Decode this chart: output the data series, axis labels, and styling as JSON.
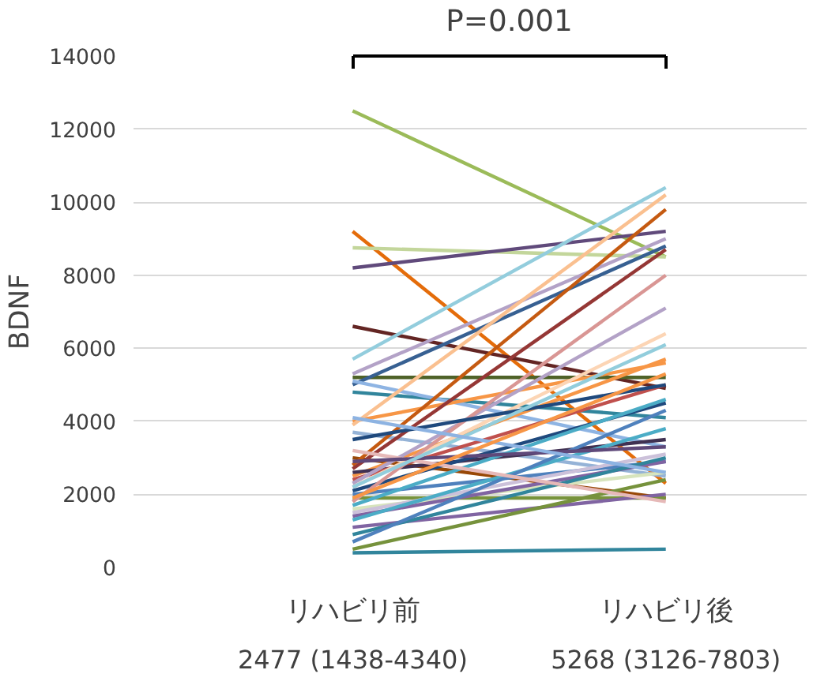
{
  "chart_data": {
    "type": "line",
    "ylabel": "BDNF",
    "categories": [
      "リハビリ前",
      "リハビリ後"
    ],
    "ylim": [
      0,
      14000
    ],
    "yticks": [
      0,
      2000,
      4000,
      6000,
      8000,
      10000,
      12000,
      14000
    ],
    "grid": "y",
    "marker": "none",
    "line_style": "solid",
    "annotations": [
      "P=0.001",
      "2477 (1438-4340)",
      "5268 (3126-7803)"
    ],
    "series": [
      {
        "color": "#9bbb59",
        "values": [
          12500,
          8500
        ]
      },
      {
        "color": "#e46c0a",
        "values": [
          9200,
          2300
        ]
      },
      {
        "color": "#c3d69b",
        "values": [
          8750,
          8500
        ]
      },
      {
        "color": "#604a7b",
        "values": [
          8200,
          9200
        ]
      },
      {
        "color": "#632523",
        "values": [
          6600,
          4900
        ]
      },
      {
        "color": "#93cddd",
        "values": [
          5700,
          10400
        ]
      },
      {
        "color": "#b3a2c7",
        "values": [
          5300,
          9000
        ]
      },
      {
        "color": "#4f6228",
        "values": [
          5200,
          5200
        ]
      },
      {
        "color": "#376092",
        "values": [
          5000,
          8800
        ]
      },
      {
        "color": "#31859c",
        "values": [
          4800,
          4100
        ]
      },
      {
        "color": "#8eb4e3",
        "values": [
          5100,
          3300
        ]
      },
      {
        "color": "#f79646",
        "values": [
          4000,
          5600
        ]
      },
      {
        "color": "#fac090",
        "values": [
          3900,
          10200
        ]
      },
      {
        "color": "#95b3d7",
        "values": [
          3700,
          2500
        ]
      },
      {
        "color": "#984807",
        "values": [
          3000,
          1900
        ]
      },
      {
        "color": "#c55a11",
        "values": [
          2800,
          9800
        ]
      },
      {
        "color": "#953735",
        "values": [
          2700,
          8700
        ]
      },
      {
        "color": "#f79646",
        "values": [
          2500,
          5700
        ]
      },
      {
        "color": "#403152",
        "values": [
          2600,
          3500
        ]
      },
      {
        "color": "#c0504d",
        "values": [
          2400,
          5000
        ]
      },
      {
        "color": "#b3a2c7",
        "values": [
          2300,
          7100
        ]
      },
      {
        "color": "#fcd5b5",
        "values": [
          2200,
          6400
        ]
      },
      {
        "color": "#1f497d",
        "values": [
          2100,
          4500
        ]
      },
      {
        "color": "#4f81bd",
        "values": [
          2000,
          2900
        ]
      },
      {
        "color": "#77933c",
        "values": [
          1900,
          1900
        ]
      },
      {
        "color": "#d99694",
        "values": [
          1800,
          8000
        ]
      },
      {
        "color": "#4bacc6",
        "values": [
          1700,
          4600
        ]
      },
      {
        "color": "#d7e4bd",
        "values": [
          1600,
          2600
        ]
      },
      {
        "color": "#ccc1da",
        "values": [
          1500,
          3100
        ]
      },
      {
        "color": "#8064a2",
        "values": [
          1400,
          2900
        ]
      },
      {
        "color": "#4bacc6",
        "values": [
          1300,
          3800
        ]
      },
      {
        "color": "#8064a2",
        "values": [
          1100,
          2000
        ]
      },
      {
        "color": "#31859c",
        "values": [
          900,
          3000
        ]
      },
      {
        "color": "#4f81bd",
        "values": [
          700,
          4300
        ]
      },
      {
        "color": "#76923c",
        "values": [
          500,
          2400
        ]
      },
      {
        "color": "#31859c",
        "values": [
          400,
          500
        ]
      },
      {
        "color": "#e6b9b8",
        "values": [
          3200,
          1800
        ]
      },
      {
        "color": "#5f497a",
        "values": [
          2900,
          3300
        ]
      },
      {
        "color": "#1f497d",
        "values": [
          3500,
          5000
        ]
      },
      {
        "color": "#92cddc",
        "values": [
          2200,
          6100
        ]
      },
      {
        "color": "#8db3e2",
        "values": [
          4100,
          2600
        ]
      },
      {
        "color": "#f79646",
        "values": [
          1900,
          5300
        ]
      }
    ]
  }
}
